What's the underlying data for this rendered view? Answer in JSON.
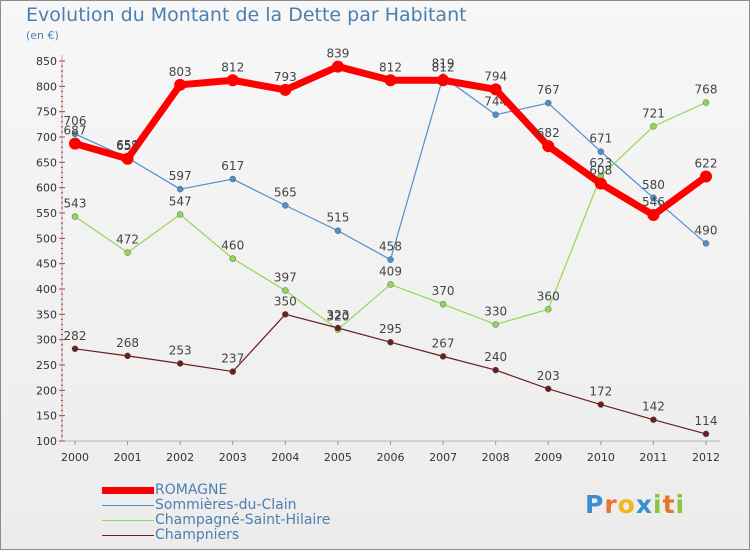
{
  "chart_data": {
    "type": "line",
    "title": "Evolution du Montant de la Dette par Habitant",
    "subtitle": "(en €)",
    "x": [
      2000,
      2001,
      2002,
      2003,
      2004,
      2005,
      2006,
      2007,
      2008,
      2009,
      2010,
      2011,
      2012
    ],
    "ylim": [
      100,
      850
    ],
    "yticks": [
      100,
      150,
      200,
      250,
      300,
      350,
      400,
      450,
      500,
      550,
      600,
      650,
      700,
      750,
      800,
      850
    ],
    "grid": false,
    "legend_position": "bottom-left",
    "series": [
      {
        "name": "Sommières-du-Clain",
        "color": "#4f8fcf",
        "values": [
          706,
          659,
          597,
          617,
          565,
          515,
          458,
          819,
          744,
          767,
          671,
          580,
          490
        ]
      },
      {
        "name": "Champagné-Saint-Hilaire",
        "color": "#93d855",
        "values": [
          543,
          472,
          547,
          460,
          397,
          320,
          409,
          370,
          330,
          360,
          623,
          721,
          768
        ]
      },
      {
        "name": "Champniers",
        "color": "#6b1e1e",
        "values": [
          282,
          268,
          253,
          237,
          350,
          323,
          295,
          267,
          240,
          203,
          172,
          142,
          114
        ]
      },
      {
        "name": "ROMAGNE",
        "color": "#ff0000",
        "values": [
          687,
          657,
          803,
          812,
          793,
          839,
          812,
          812,
          794,
          682,
          608,
          546,
          622
        ]
      }
    ],
    "legend_order": [
      "ROMAGNE",
      "Sommières-du-Clain",
      "Champagné-Saint-Hilaire",
      "Champniers"
    ]
  },
  "logo": {
    "text": "Proxiti",
    "letters": [
      "P",
      "r",
      "o",
      "x",
      "i",
      "t",
      "i"
    ],
    "colors": [
      "#3a8fd0",
      "#e8732a",
      "#f2b51b",
      "#3a8fd0",
      "#8bc43f",
      "#e8732a",
      "#8bc43f"
    ]
  }
}
